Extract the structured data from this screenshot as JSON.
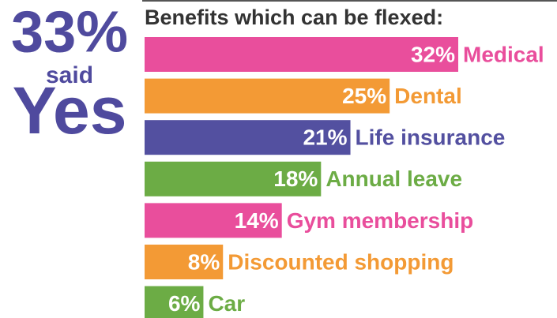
{
  "chart_data": {
    "type": "bar",
    "orientation": "horizontal",
    "title": "Benefits which can be flexed:",
    "callout": [
      "33%",
      "said",
      "Yes"
    ],
    "categories": [
      "Medical",
      "Dental",
      "Life insurance",
      "Annual leave",
      "Gym membership",
      "Discounted shopping",
      "Car"
    ],
    "values": [
      32,
      25,
      21,
      18,
      14,
      8,
      6
    ],
    "value_labels": [
      "32%",
      "25%",
      "21%",
      "18%",
      "14%",
      "8%",
      "6%"
    ],
    "colors": [
      "#e94e9c",
      "#f39a35",
      "#5350a0",
      "#6cac45",
      "#e94e9c",
      "#f39a35",
      "#6cac45"
    ]
  }
}
